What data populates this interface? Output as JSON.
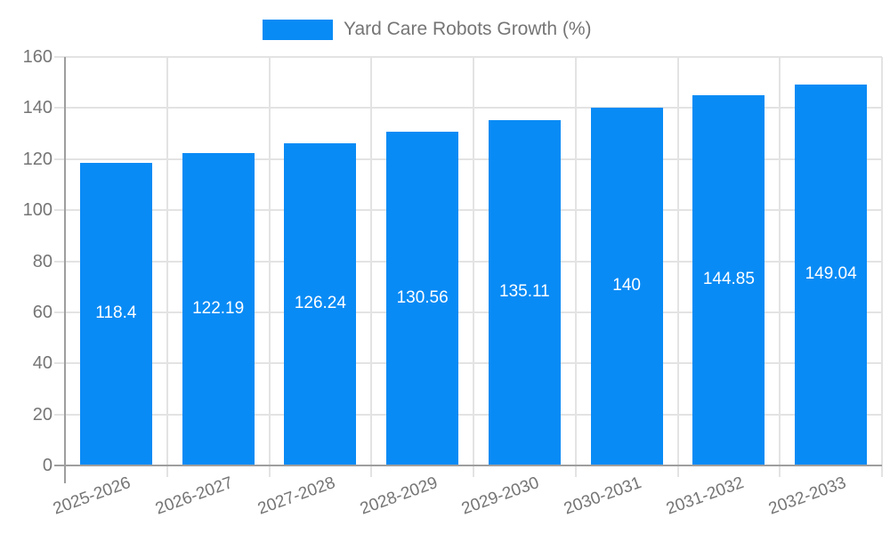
{
  "chart_data": {
    "type": "bar",
    "title": "Yard Care Robots Growth (%)",
    "categories": [
      "2025-2026",
      "2026-2027",
      "2027-2028",
      "2028-2029",
      "2029-2030",
      "2030-2031",
      "2031-2032",
      "2032-2033"
    ],
    "values": [
      118.4,
      122.19,
      126.24,
      130.56,
      135.11,
      140,
      144.85,
      149.04
    ],
    "series_name": "Yard Care Robots Growth (%)",
    "xlabel": "",
    "ylabel": "",
    "ylim": [
      0,
      160
    ],
    "ytick_step": 20,
    "ytick_labels": [
      "0",
      "20",
      "40",
      "60",
      "80",
      "100",
      "120",
      "140",
      "160"
    ],
    "grid": true,
    "legend_position": "top",
    "bar_label_position": "inside-middle",
    "colors": {
      "bar": "#098bf5",
      "bar_label": "#ffffff",
      "axis_line": "#9e9e9e",
      "gridline": "#e3e3e3",
      "text": "#757575",
      "background": "#ffffff"
    }
  }
}
